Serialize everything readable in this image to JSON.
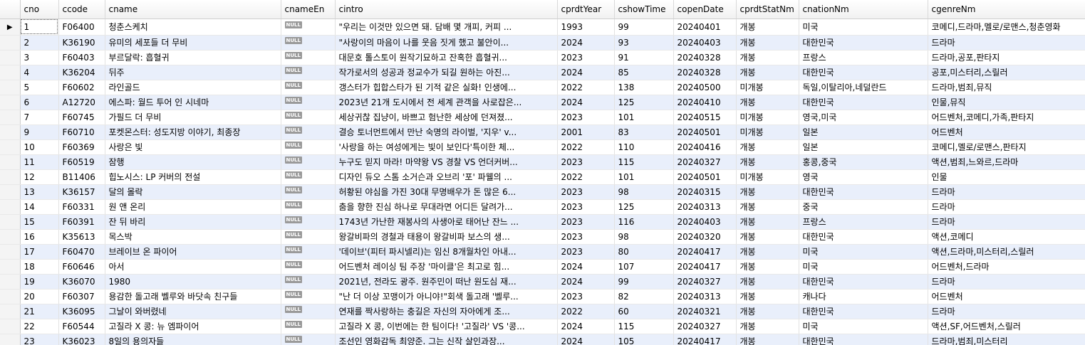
{
  "columns": [
    "cno",
    "ccode",
    "cname",
    "cnameEn",
    "cintro",
    "cprdtYear",
    "cshowTime",
    "copenDate",
    "cprdtStatNm",
    "cnationNm",
    "cgenreNm"
  ],
  "null_label": "NULL",
  "selected_indicator": "▶",
  "rows": [
    {
      "cno": "1",
      "ccode": "F06400",
      "cname": "청춘스케치",
      "cintro": "\"우리는 이것만 있으면 돼. 담배 몇 개피, 커피 ...",
      "cprdtYear": "1993",
      "cshowTime": "99",
      "copenDate": "20240401",
      "cprdtStatNm": "개봉",
      "cnationNm": "미국",
      "cgenreNm": "코메디,드라마,멜로/로맨스,청춘영화"
    },
    {
      "cno": "2",
      "ccode": "K36190",
      "cname": "유미의 세포들 더 무비",
      "cintro": "\"사랑이의 마음이 나를 웃음 짓게 했고 불안이...",
      "cprdtYear": "2024",
      "cshowTime": "93",
      "copenDate": "20240403",
      "cprdtStatNm": "개봉",
      "cnationNm": "대한민국",
      "cgenreNm": "드라마"
    },
    {
      "cno": "3",
      "ccode": "F60403",
      "cname": "부르달락: 흡혈귀",
      "cintro": "대문호 톨스토이 원작기묘하고 잔혹한 흡혈귀...",
      "cprdtYear": "2023",
      "cshowTime": "91",
      "copenDate": "20240328",
      "cprdtStatNm": "개봉",
      "cnationNm": "프랑스",
      "cgenreNm": "드라마,공포,판타지"
    },
    {
      "cno": "4",
      "ccode": "K36204",
      "cname": "뒤주",
      "cintro": "작가로서의 성공과 정교수가 되길 원하는 아진...",
      "cprdtYear": "2024",
      "cshowTime": "85",
      "copenDate": "20240328",
      "cprdtStatNm": "개봉",
      "cnationNm": "대한민국",
      "cgenreNm": "공포,미스터리,스릴러"
    },
    {
      "cno": "5",
      "ccode": "F60602",
      "cname": "라인골드",
      "cintro": "갱스터가 힙합스타가 된 기적 같은 실화! 인생에...",
      "cprdtYear": "2022",
      "cshowTime": "138",
      "copenDate": "20240500",
      "cprdtStatNm": "미개봉",
      "cnationNm": "독일,이탈리아,네덜란드",
      "cgenreNm": "드라마,범죄,뮤직"
    },
    {
      "cno": "6",
      "ccode": "A12720",
      "cname": "에스파: 월드 투어 인 시네마",
      "cintro": "2023년 21개 도시에서 전 세계 관객을 사로잡은...",
      "cprdtYear": "2024",
      "cshowTime": "125",
      "copenDate": "20240410",
      "cprdtStatNm": "개봉",
      "cnationNm": "대한민국",
      "cgenreNm": "인물,뮤직"
    },
    {
      "cno": "7",
      "ccode": "F60745",
      "cname": "가필드 더 무비",
      "cintro": "세상귀찮 집냥이, 바쁘고 험난한 세상에 던져졌...",
      "cprdtYear": "2023",
      "cshowTime": "101",
      "copenDate": "20240515",
      "cprdtStatNm": "미개봉",
      "cnationNm": "영국,미국",
      "cgenreNm": "어드벤처,코메디,가족,판타지"
    },
    {
      "cno": "9",
      "ccode": "F60710",
      "cname": "포켓몬스터: 성도지방 이야기, 최종장",
      "cintro": "결승 토너먼트에서 만난 숙명의 라이벌, '지우' v...",
      "cprdtYear": "2001",
      "cshowTime": "83",
      "copenDate": "20240501",
      "cprdtStatNm": "미개봉",
      "cnationNm": "일본",
      "cgenreNm": "어드벤처"
    },
    {
      "cno": "10",
      "ccode": "F60369",
      "cname": "사랑은 빛",
      "cintro": "'사랑을 하는 여성에게는 빛이 보인다'특이한 체...",
      "cprdtYear": "2022",
      "cshowTime": "110",
      "copenDate": "20240416",
      "cprdtStatNm": "개봉",
      "cnationNm": "일본",
      "cgenreNm": "코메디,멜로/로맨스,판타지"
    },
    {
      "cno": "11",
      "ccode": "F60519",
      "cname": "잠행",
      "cintro": "누구도 믿지 마라! 마약왕 VS 경찰 VS 언더커버...",
      "cprdtYear": "2023",
      "cshowTime": "115",
      "copenDate": "20240327",
      "cprdtStatNm": "개봉",
      "cnationNm": "홍콩,중국",
      "cgenreNm": "액션,범죄,느와르,드라마"
    },
    {
      "cno": "12",
      "ccode": "B11406",
      "cname": "힙노시스: LP 커버의 전설",
      "cintro": "디자인 듀오 스톰 소거슨과 오브리 '포' 파웰의 ...",
      "cprdtYear": "2022",
      "cshowTime": "101",
      "copenDate": "20240501",
      "cprdtStatNm": "미개봉",
      "cnationNm": "영국",
      "cgenreNm": "인물"
    },
    {
      "cno": "13",
      "ccode": "K36157",
      "cname": "달의 몰락",
      "cintro": "허황된 야심을 가진 30대 무명배우가 돈 많은 6...",
      "cprdtYear": "2023",
      "cshowTime": "98",
      "copenDate": "20240315",
      "cprdtStatNm": "개봉",
      "cnationNm": "대한민국",
      "cgenreNm": "드라마"
    },
    {
      "cno": "14",
      "ccode": "F60331",
      "cname": "원 앤 온리",
      "cintro": "춤을 향한 진심 하나로 무대라면 어디든 달려가...",
      "cprdtYear": "2023",
      "cshowTime": "125",
      "copenDate": "20240313",
      "cprdtStatNm": "개봉",
      "cnationNm": "중국",
      "cgenreNm": "드라마"
    },
    {
      "cno": "15",
      "ccode": "F60391",
      "cname": "잔 뒤 바리",
      "cintro": "1743년 가난한 재봉사의 사생아로 태어난 잔느 ...",
      "cprdtYear": "2023",
      "cshowTime": "116",
      "copenDate": "20240403",
      "cprdtStatNm": "개봉",
      "cnationNm": "프랑스",
      "cgenreNm": "드라마"
    },
    {
      "cno": "16",
      "ccode": "K35613",
      "cname": "목스박",
      "cintro": "왕갈비파의 경철과 태용이 왕갈비파 보스의 생...",
      "cprdtYear": "2023",
      "cshowTime": "98",
      "copenDate": "20240320",
      "cprdtStatNm": "개봉",
      "cnationNm": "대한민국",
      "cgenreNm": "액션,코메디"
    },
    {
      "cno": "17",
      "ccode": "F60470",
      "cname": "브레이브 온 파이어",
      "cintro": "'데이브'(피터 파시넬리)는 임신 8개월차인 아내...",
      "cprdtYear": "2023",
      "cshowTime": "80",
      "copenDate": "20240417",
      "cprdtStatNm": "개봉",
      "cnationNm": "미국",
      "cgenreNm": "액션,드라마,미스터리,스릴러"
    },
    {
      "cno": "18",
      "ccode": "F60646",
      "cname": "아서",
      "cintro": "어드벤처 레이싱 팀 주장 '마이클'은 최고로 힘...",
      "cprdtYear": "2024",
      "cshowTime": "107",
      "copenDate": "20240417",
      "cprdtStatNm": "개봉",
      "cnationNm": "미국",
      "cgenreNm": "어드벤처,드라마"
    },
    {
      "cno": "19",
      "ccode": "K36070",
      "cname": "1980",
      "cintro": "2021년, 전라도 광주. 원주민이 떠난 원도심 재...",
      "cprdtYear": "2024",
      "cshowTime": "99",
      "copenDate": "20240327",
      "cprdtStatNm": "개봉",
      "cnationNm": "대한민국",
      "cgenreNm": "드라마"
    },
    {
      "cno": "20",
      "ccode": "F60307",
      "cname": "용감한 돌고래 벨루와 바닷속 친구들",
      "cintro": "\"난 더 이상 꼬맹이가 아니야!\"회색 돌고래 '벨루...",
      "cprdtYear": "2023",
      "cshowTime": "82",
      "copenDate": "20240313",
      "cprdtStatNm": "개봉",
      "cnationNm": "캐나다",
      "cgenreNm": "어드벤처"
    },
    {
      "cno": "21",
      "ccode": "K36095",
      "cname": "그날이 와버렸네",
      "cintro": "연재를 짝사랑하는 충길은 자신의 자아에게 조...",
      "cprdtYear": "2022",
      "cshowTime": "60",
      "copenDate": "20240321",
      "cprdtStatNm": "개봉",
      "cnationNm": "대한민국",
      "cgenreNm": "드라마"
    },
    {
      "cno": "22",
      "ccode": "F60544",
      "cname": "고질라 X 콩: 뉴 엠파이어",
      "cintro": "고질라 X 콩, 이번에는 한 팀이다! '고질라' VS '콩...",
      "cprdtYear": "2024",
      "cshowTime": "115",
      "copenDate": "20240327",
      "cprdtStatNm": "개봉",
      "cnationNm": "미국",
      "cgenreNm": "액션,SF,어드벤처,스릴러"
    },
    {
      "cno": "23",
      "ccode": "K36023",
      "cname": "8일의 용의자들",
      "cintro": "조선인 영화감독 최양준. 그는 신작 살인과장...",
      "cprdtYear": "2024",
      "cshowTime": "105",
      "copenDate": "20240417",
      "cprdtStatNm": "개봉",
      "cnationNm": "대한민국",
      "cgenreNm": "드라마,범죄,미스터리"
    }
  ]
}
